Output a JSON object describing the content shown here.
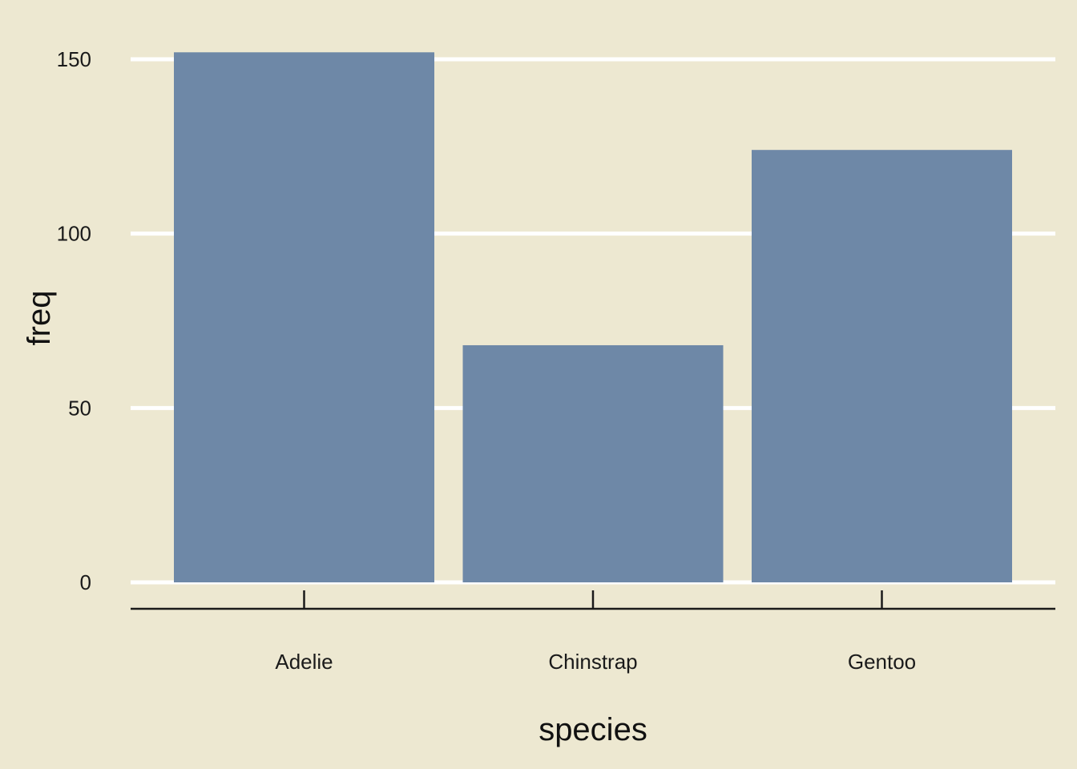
{
  "chart_data": {
    "type": "bar",
    "categories": [
      "Adelie",
      "Chinstrap",
      "Gentoo"
    ],
    "values": [
      152,
      68,
      124
    ],
    "title": "",
    "xlabel": "species",
    "ylabel": "freq",
    "ylim": [
      0,
      152
    ],
    "yticks": [
      0,
      50,
      100,
      150
    ],
    "grid": "horizontal",
    "legend": "none"
  },
  "colors": {
    "background": "#ede8d1",
    "bar": "#6e88a7",
    "gridline": "#ffffff",
    "axis": "#1a1a1a"
  }
}
